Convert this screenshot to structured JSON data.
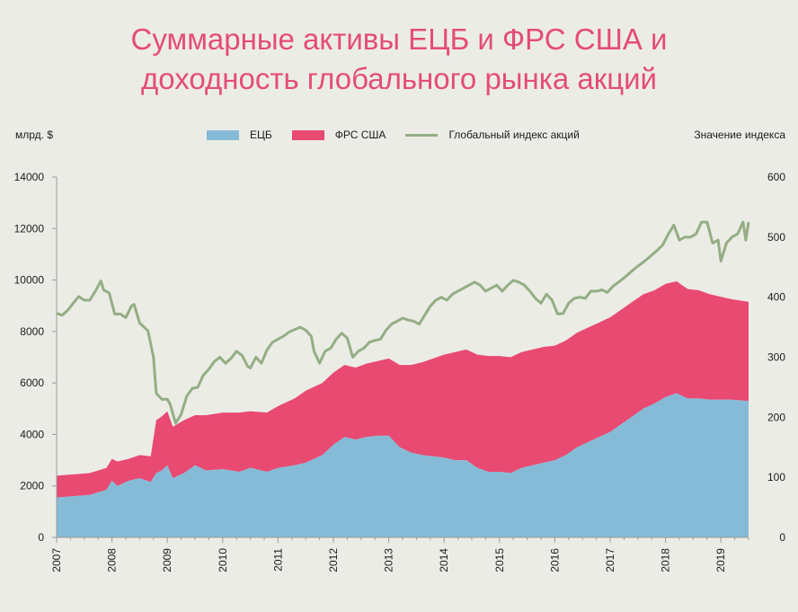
{
  "title": {
    "line1": "Суммарные активы ЕЦБ и ФРС США и",
    "line2": "доходность глобального рынка акций"
  },
  "axes": {
    "left_unit": "млрд. $",
    "right_unit": "Значение индекса"
  },
  "colors": {
    "title": "#e44d73",
    "ecb": "#85bbd7",
    "fed": "#e84a72",
    "index": "#94ae84",
    "background": "#ececE6"
  },
  "legend": [
    {
      "key": "ecb",
      "label": "ЕЦБ",
      "type": "area"
    },
    {
      "key": "fed",
      "label": "ФРС США",
      "type": "area"
    },
    {
      "key": "index",
      "label": "Глобальный индекс акций",
      "type": "line"
    }
  ],
  "chart_data": {
    "type": "area",
    "stacked": true,
    "x_labels": [
      "2007",
      "2008",
      "2009",
      "2010",
      "2011",
      "2012",
      "2013",
      "2014",
      "2015",
      "2016",
      "2017",
      "2018",
      "2019"
    ],
    "x_range": [
      2007.0,
      2019.5
    ],
    "y_left": {
      "range": [
        0,
        14000
      ],
      "ticks": [
        0,
        2000,
        4000,
        6000,
        8000,
        10000,
        12000,
        14000
      ]
    },
    "y_right": {
      "range": [
        0,
        600
      ],
      "ticks": [
        0,
        100,
        200,
        300,
        400,
        500,
        600
      ]
    },
    "series": [
      {
        "name": "ЕЦБ",
        "axis": "left",
        "points": [
          [
            2007.0,
            1550
          ],
          [
            2007.3,
            1600
          ],
          [
            2007.6,
            1650
          ],
          [
            2007.9,
            1850
          ],
          [
            2008.0,
            2200
          ],
          [
            2008.1,
            2000
          ],
          [
            2008.3,
            2200
          ],
          [
            2008.5,
            2300
          ],
          [
            2008.7,
            2150
          ],
          [
            2008.8,
            2500
          ],
          [
            2008.9,
            2600
          ],
          [
            2009.0,
            2800
          ],
          [
            2009.1,
            2300
          ],
          [
            2009.3,
            2500
          ],
          [
            2009.5,
            2800
          ],
          [
            2009.7,
            2600
          ],
          [
            2010.0,
            2650
          ],
          [
            2010.3,
            2550
          ],
          [
            2010.5,
            2700
          ],
          [
            2010.8,
            2550
          ],
          [
            2011.0,
            2700
          ],
          [
            2011.3,
            2800
          ],
          [
            2011.5,
            2900
          ],
          [
            2011.8,
            3200
          ],
          [
            2012.0,
            3600
          ],
          [
            2012.2,
            3900
          ],
          [
            2012.4,
            3800
          ],
          [
            2012.6,
            3900
          ],
          [
            2012.8,
            3950
          ],
          [
            2013.0,
            3950
          ],
          [
            2013.2,
            3500
          ],
          [
            2013.4,
            3300
          ],
          [
            2013.6,
            3200
          ],
          [
            2013.8,
            3150
          ],
          [
            2014.0,
            3100
          ],
          [
            2014.2,
            3000
          ],
          [
            2014.4,
            3000
          ],
          [
            2014.6,
            2700
          ],
          [
            2014.8,
            2550
          ],
          [
            2015.0,
            2550
          ],
          [
            2015.2,
            2500
          ],
          [
            2015.4,
            2700
          ],
          [
            2015.6,
            2800
          ],
          [
            2015.8,
            2900
          ],
          [
            2016.0,
            3000
          ],
          [
            2016.2,
            3200
          ],
          [
            2016.4,
            3500
          ],
          [
            2016.6,
            3700
          ],
          [
            2016.8,
            3900
          ],
          [
            2017.0,
            4100
          ],
          [
            2017.2,
            4400
          ],
          [
            2017.4,
            4700
          ],
          [
            2017.6,
            5000
          ],
          [
            2017.8,
            5200
          ],
          [
            2018.0,
            5450
          ],
          [
            2018.2,
            5600
          ],
          [
            2018.4,
            5400
          ],
          [
            2018.6,
            5400
          ],
          [
            2018.8,
            5350
          ],
          [
            2019.0,
            5350
          ],
          [
            2019.2,
            5350
          ],
          [
            2019.5,
            5300
          ]
        ]
      },
      {
        "name": "ФРС США",
        "axis": "left",
        "points": [
          [
            2007.0,
            850
          ],
          [
            2007.3,
            850
          ],
          [
            2007.6,
            850
          ],
          [
            2007.9,
            850
          ],
          [
            2008.0,
            850
          ],
          [
            2008.1,
            950
          ],
          [
            2008.3,
            850
          ],
          [
            2008.5,
            900
          ],
          [
            2008.7,
            1000
          ],
          [
            2008.8,
            2050
          ],
          [
            2008.9,
            2100
          ],
          [
            2009.0,
            2100
          ],
          [
            2009.1,
            2000
          ],
          [
            2009.3,
            2050
          ],
          [
            2009.5,
            1950
          ],
          [
            2009.7,
            2150
          ],
          [
            2010.0,
            2200
          ],
          [
            2010.3,
            2300
          ],
          [
            2010.5,
            2200
          ],
          [
            2010.8,
            2300
          ],
          [
            2011.0,
            2400
          ],
          [
            2011.3,
            2600
          ],
          [
            2011.5,
            2800
          ],
          [
            2011.8,
            2800
          ],
          [
            2012.0,
            2800
          ],
          [
            2012.2,
            2800
          ],
          [
            2012.4,
            2800
          ],
          [
            2012.6,
            2850
          ],
          [
            2012.8,
            2900
          ],
          [
            2013.0,
            3000
          ],
          [
            2013.2,
            3200
          ],
          [
            2013.4,
            3400
          ],
          [
            2013.6,
            3600
          ],
          [
            2013.8,
            3800
          ],
          [
            2014.0,
            4000
          ],
          [
            2014.2,
            4200
          ],
          [
            2014.4,
            4300
          ],
          [
            2014.6,
            4400
          ],
          [
            2014.8,
            4500
          ],
          [
            2015.0,
            4500
          ],
          [
            2015.2,
            4500
          ],
          [
            2015.4,
            4500
          ],
          [
            2015.6,
            4500
          ],
          [
            2015.8,
            4500
          ],
          [
            2016.0,
            4450
          ],
          [
            2016.2,
            4450
          ],
          [
            2016.4,
            4450
          ],
          [
            2016.6,
            4450
          ],
          [
            2016.8,
            4450
          ],
          [
            2017.0,
            4450
          ],
          [
            2017.2,
            4450
          ],
          [
            2017.4,
            4450
          ],
          [
            2017.6,
            4450
          ],
          [
            2017.8,
            4400
          ],
          [
            2018.0,
            4400
          ],
          [
            2018.2,
            4350
          ],
          [
            2018.4,
            4250
          ],
          [
            2018.6,
            4200
          ],
          [
            2018.8,
            4100
          ],
          [
            2019.0,
            4000
          ],
          [
            2019.2,
            3900
          ],
          [
            2019.5,
            3850
          ]
        ]
      },
      {
        "name": "Глобальный индекс акций",
        "axis": "right",
        "points": [
          [
            2007.0,
            373
          ],
          [
            2007.1,
            370
          ],
          [
            2007.2,
            378
          ],
          [
            2007.3,
            390
          ],
          [
            2007.4,
            401
          ],
          [
            2007.5,
            395
          ],
          [
            2007.6,
            395
          ],
          [
            2007.7,
            410
          ],
          [
            2007.8,
            427
          ],
          [
            2007.85,
            412
          ],
          [
            2007.95,
            407
          ],
          [
            2008.05,
            372
          ],
          [
            2008.15,
            372
          ],
          [
            2008.25,
            366
          ],
          [
            2008.35,
            385
          ],
          [
            2008.4,
            388
          ],
          [
            2008.5,
            357
          ],
          [
            2008.65,
            344
          ],
          [
            2008.75,
            300
          ],
          [
            2008.8,
            240
          ],
          [
            2008.9,
            230
          ],
          [
            2009.0,
            230
          ],
          [
            2009.05,
            222
          ],
          [
            2009.15,
            190
          ],
          [
            2009.25,
            205
          ],
          [
            2009.35,
            235
          ],
          [
            2009.45,
            248
          ],
          [
            2009.55,
            250
          ],
          [
            2009.65,
            270
          ],
          [
            2009.75,
            280
          ],
          [
            2009.85,
            293
          ],
          [
            2009.95,
            300
          ],
          [
            2010.05,
            290
          ],
          [
            2010.15,
            298
          ],
          [
            2010.25,
            310
          ],
          [
            2010.35,
            303
          ],
          [
            2010.45,
            285
          ],
          [
            2010.5,
            282
          ],
          [
            2010.6,
            300
          ],
          [
            2010.7,
            290
          ],
          [
            2010.8,
            312
          ],
          [
            2010.9,
            325
          ],
          [
            2011.0,
            330
          ],
          [
            2011.1,
            335
          ],
          [
            2011.2,
            342
          ],
          [
            2011.3,
            346
          ],
          [
            2011.4,
            350
          ],
          [
            2011.5,
            345
          ],
          [
            2011.6,
            335
          ],
          [
            2011.65,
            310
          ],
          [
            2011.75,
            290
          ],
          [
            2011.85,
            310
          ],
          [
            2011.95,
            315
          ],
          [
            2012.05,
            330
          ],
          [
            2012.15,
            340
          ],
          [
            2012.25,
            332
          ],
          [
            2012.35,
            300
          ],
          [
            2012.45,
            310
          ],
          [
            2012.55,
            315
          ],
          [
            2012.65,
            325
          ],
          [
            2012.75,
            328
          ],
          [
            2012.85,
            330
          ],
          [
            2012.95,
            345
          ],
          [
            2013.05,
            355
          ],
          [
            2013.15,
            360
          ],
          [
            2013.25,
            365
          ],
          [
            2013.35,
            362
          ],
          [
            2013.45,
            360
          ],
          [
            2013.55,
            355
          ],
          [
            2013.65,
            370
          ],
          [
            2013.75,
            385
          ],
          [
            2013.85,
            395
          ],
          [
            2013.95,
            400
          ],
          [
            2014.05,
            395
          ],
          [
            2014.15,
            405
          ],
          [
            2014.25,
            410
          ],
          [
            2014.35,
            415
          ],
          [
            2014.45,
            420
          ],
          [
            2014.55,
            425
          ],
          [
            2014.65,
            420
          ],
          [
            2014.75,
            410
          ],
          [
            2014.85,
            415
          ],
          [
            2014.95,
            420
          ],
          [
            2015.05,
            410
          ],
          [
            2015.15,
            420
          ],
          [
            2015.25,
            428
          ],
          [
            2015.35,
            425
          ],
          [
            2015.45,
            420
          ],
          [
            2015.55,
            410
          ],
          [
            2015.65,
            398
          ],
          [
            2015.75,
            390
          ],
          [
            2015.85,
            405
          ],
          [
            2015.95,
            395
          ],
          [
            2016.05,
            372
          ],
          [
            2016.15,
            373
          ],
          [
            2016.25,
            390
          ],
          [
            2016.35,
            398
          ],
          [
            2016.45,
            400
          ],
          [
            2016.55,
            398
          ],
          [
            2016.65,
            410
          ],
          [
            2016.75,
            410
          ],
          [
            2016.85,
            412
          ],
          [
            2016.95,
            408
          ],
          [
            2017.05,
            418
          ],
          [
            2017.15,
            425
          ],
          [
            2017.25,
            432
          ],
          [
            2017.35,
            440
          ],
          [
            2017.45,
            448
          ],
          [
            2017.55,
            455
          ],
          [
            2017.65,
            462
          ],
          [
            2017.75,
            470
          ],
          [
            2017.85,
            478
          ],
          [
            2017.95,
            487
          ],
          [
            2018.05,
            505
          ],
          [
            2018.15,
            520
          ],
          [
            2018.25,
            495
          ],
          [
            2018.35,
            500
          ],
          [
            2018.45,
            500
          ],
          [
            2018.55,
            505
          ],
          [
            2018.65,
            525
          ],
          [
            2018.75,
            525
          ],
          [
            2018.85,
            490
          ],
          [
            2018.95,
            495
          ],
          [
            2019.0,
            460
          ],
          [
            2019.1,
            490
          ],
          [
            2019.2,
            500
          ],
          [
            2019.3,
            505
          ],
          [
            2019.4,
            525
          ],
          [
            2019.45,
            495
          ],
          [
            2019.5,
            525
          ]
        ]
      }
    ]
  }
}
